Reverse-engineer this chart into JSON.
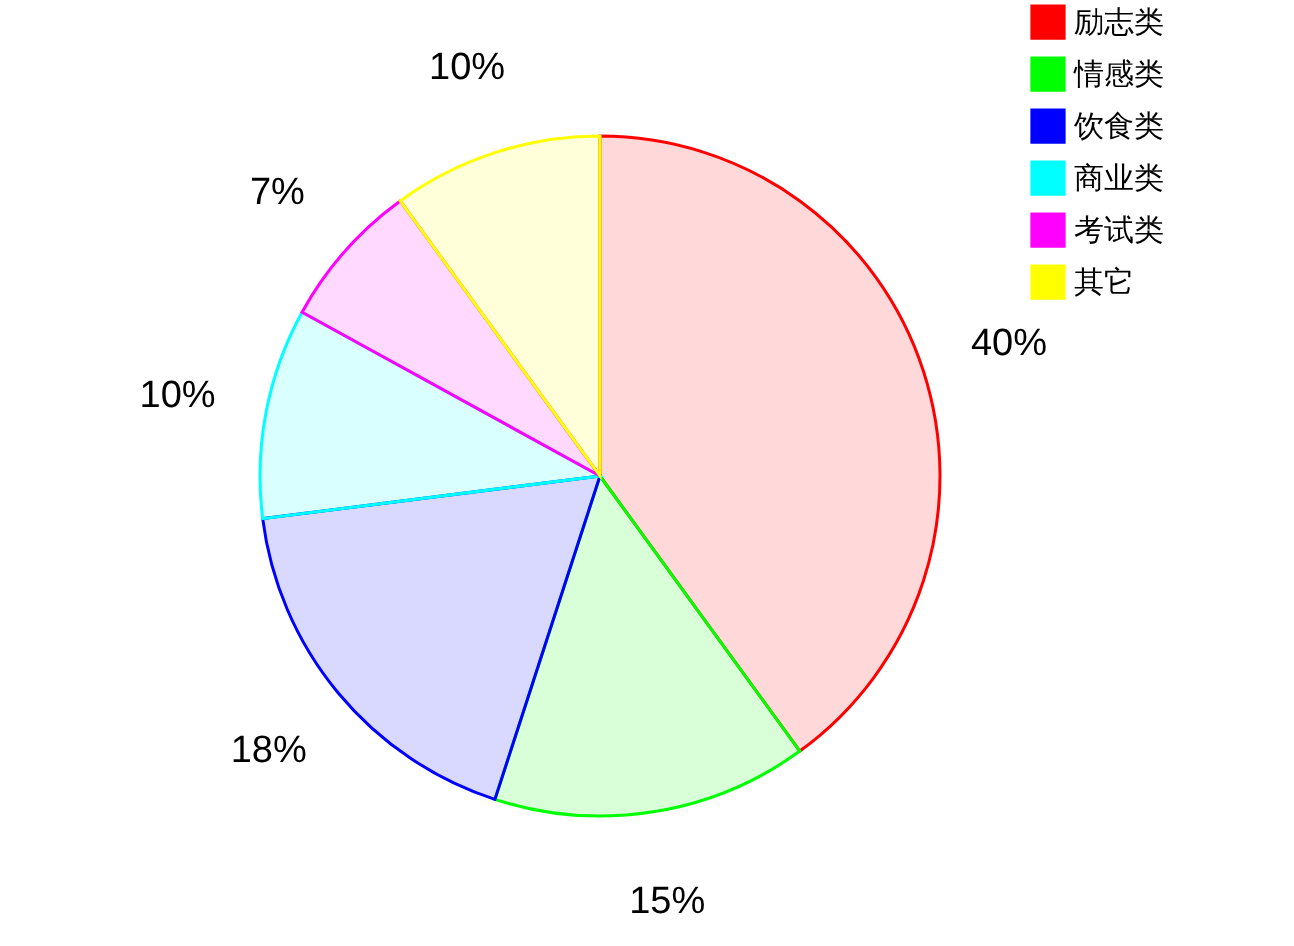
{
  "chart_data": {
    "type": "pie",
    "categories": [
      "励志类",
      "情感类",
      "饮食类",
      "商业类",
      "考试类",
      "其它"
    ],
    "values": [
      40,
      15,
      18,
      10,
      7,
      10
    ],
    "colors": [
      "#ff0000",
      "#00ff00",
      "#0000ff",
      "#00ffff",
      "#ff00ff",
      "#ffff00"
    ],
    "value_labels": [
      "40%",
      "15%",
      "18%",
      "10%",
      "7%",
      "10%"
    ],
    "legend": "top right"
  }
}
